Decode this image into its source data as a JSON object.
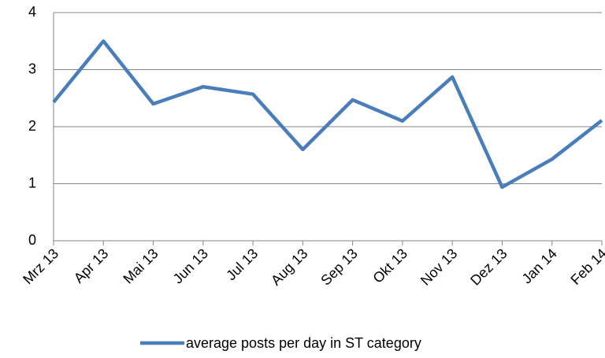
{
  "chart_data": {
    "type": "line",
    "categories": [
      "Mrz 13",
      "Apr 13",
      "Mai 13",
      "Jun 13",
      "Jul 13",
      "Aug 13",
      "Sep 13",
      "Okt 13",
      "Nov 13",
      "Dez 13",
      "Jan 14",
      "Feb 14"
    ],
    "series": [
      {
        "name": "average posts per day in ST category",
        "color": "#4a7ebb",
        "values": [
          2.43,
          3.5,
          2.4,
          2.7,
          2.57,
          1.6,
          2.47,
          2.1,
          2.87,
          0.94,
          1.43,
          2.11
        ]
      }
    ],
    "ylim": [
      0,
      4
    ],
    "yticks": [
      0,
      1,
      2,
      3,
      4
    ],
    "grid": true,
    "legend": "bottom"
  }
}
